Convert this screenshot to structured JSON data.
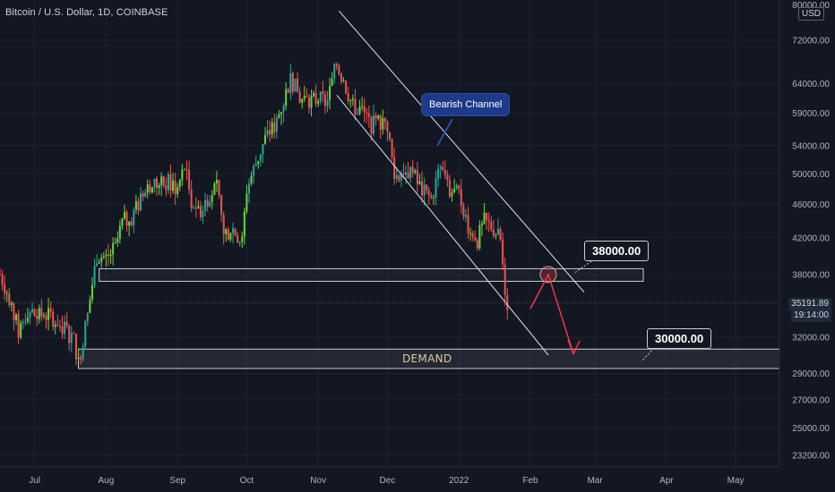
{
  "symbol": "Bitcoin / U.S. Dollar, 1D, COINBASE",
  "currency": "USD",
  "colors": {
    "background": "#131722",
    "up": "#26a69a",
    "up_bright": "#6cd43f",
    "down": "#ef5350",
    "grid": "#1e2230",
    "axis_text": "#b2b5be",
    "channel_line": "#e0e3eb",
    "arrow": "#f23645"
  },
  "annotations": {
    "channel_label": "Bearish Channel",
    "resistance_label": "38000.00",
    "target_label": "30000.00",
    "demand_label": "DEMAND"
  },
  "last_price": "35191.89",
  "countdown": "19:14:00",
  "chart_data": {
    "type": "candlestick",
    "log_scale": true,
    "grid": true,
    "y_axis_ticks": [
      "80000.00",
      "72000.00",
      "64000.00",
      "59000.00",
      "54000.00",
      "50000.00",
      "46000.00",
      "42000.00",
      "38000.00",
      "32000.00",
      "29000.00",
      "27000.00",
      "25000.00",
      "23200.00"
    ],
    "x_axis_ticks": [
      "Jul",
      "Aug",
      "Sep",
      "Oct",
      "Nov",
      "Dec",
      "2022",
      "Feb",
      "Mar",
      "Apr",
      "May"
    ],
    "ylim": [
      22500,
      82000
    ],
    "xlim": [
      "2021-06-16",
      "2022-05-20"
    ],
    "closes": [
      {
        "date": "2021-06-16",
        "close": 38000
      },
      {
        "date": "2021-06-20",
        "close": 35700
      },
      {
        "date": "2021-06-24",
        "close": 32500
      },
      {
        "date": "2021-06-28",
        "close": 34500
      },
      {
        "date": "2021-07-02",
        "close": 33800
      },
      {
        "date": "2021-07-06",
        "close": 34200
      },
      {
        "date": "2021-07-10",
        "close": 33600
      },
      {
        "date": "2021-07-14",
        "close": 32800
      },
      {
        "date": "2021-07-18",
        "close": 31800
      },
      {
        "date": "2021-07-20",
        "close": 29800
      },
      {
        "date": "2021-07-24",
        "close": 34000
      },
      {
        "date": "2021-07-28",
        "close": 40000
      },
      {
        "date": "2021-08-01",
        "close": 39800
      },
      {
        "date": "2021-08-05",
        "close": 40800
      },
      {
        "date": "2021-08-08",
        "close": 43800
      },
      {
        "date": "2021-08-12",
        "close": 44500
      },
      {
        "date": "2021-08-16",
        "close": 46500
      },
      {
        "date": "2021-08-20",
        "close": 48500
      },
      {
        "date": "2021-08-24",
        "close": 48500
      },
      {
        "date": "2021-08-28",
        "close": 48800
      },
      {
        "date": "2021-09-01",
        "close": 48000
      },
      {
        "date": "2021-09-04",
        "close": 51000
      },
      {
        "date": "2021-09-07",
        "close": 46500
      },
      {
        "date": "2021-09-11",
        "close": 45200
      },
      {
        "date": "2021-09-15",
        "close": 47500
      },
      {
        "date": "2021-09-18",
        "close": 48000
      },
      {
        "date": "2021-09-21",
        "close": 42700
      },
      {
        "date": "2021-09-25",
        "close": 43000
      },
      {
        "date": "2021-09-29",
        "close": 41500
      },
      {
        "date": "2021-10-01",
        "close": 48000
      },
      {
        "date": "2021-10-05",
        "close": 51500
      },
      {
        "date": "2021-10-09",
        "close": 55000
      },
      {
        "date": "2021-10-13",
        "close": 57000
      },
      {
        "date": "2021-10-17",
        "close": 61000
      },
      {
        "date": "2021-10-20",
        "close": 65000
      },
      {
        "date": "2021-10-24",
        "close": 61500
      },
      {
        "date": "2021-10-28",
        "close": 61000
      },
      {
        "date": "2021-11-01",
        "close": 61300
      },
      {
        "date": "2021-11-05",
        "close": 61000
      },
      {
        "date": "2021-11-09",
        "close": 67500
      },
      {
        "date": "2021-11-12",
        "close": 64500
      },
      {
        "date": "2021-11-16",
        "close": 60000
      },
      {
        "date": "2021-11-20",
        "close": 59500
      },
      {
        "date": "2021-11-24",
        "close": 57200
      },
      {
        "date": "2021-11-28",
        "close": 57500
      },
      {
        "date": "2021-12-01",
        "close": 57000
      },
      {
        "date": "2021-12-04",
        "close": 49500
      },
      {
        "date": "2021-12-08",
        "close": 50600
      },
      {
        "date": "2021-12-12",
        "close": 50000
      },
      {
        "date": "2021-12-16",
        "close": 47700
      },
      {
        "date": "2021-12-20",
        "close": 46700
      },
      {
        "date": "2021-12-24",
        "close": 50800
      },
      {
        "date": "2021-12-28",
        "close": 47600
      },
      {
        "date": "2022-01-01",
        "close": 47300
      },
      {
        "date": "2022-01-05",
        "close": 43500
      },
      {
        "date": "2022-01-09",
        "close": 41800
      },
      {
        "date": "2022-01-12",
        "close": 43900
      },
      {
        "date": "2022-01-16",
        "close": 43100
      },
      {
        "date": "2022-01-19",
        "close": 41700
      },
      {
        "date": "2022-01-21",
        "close": 36500
      },
      {
        "date": "2022-01-22",
        "close": 35191.89
      }
    ]
  }
}
